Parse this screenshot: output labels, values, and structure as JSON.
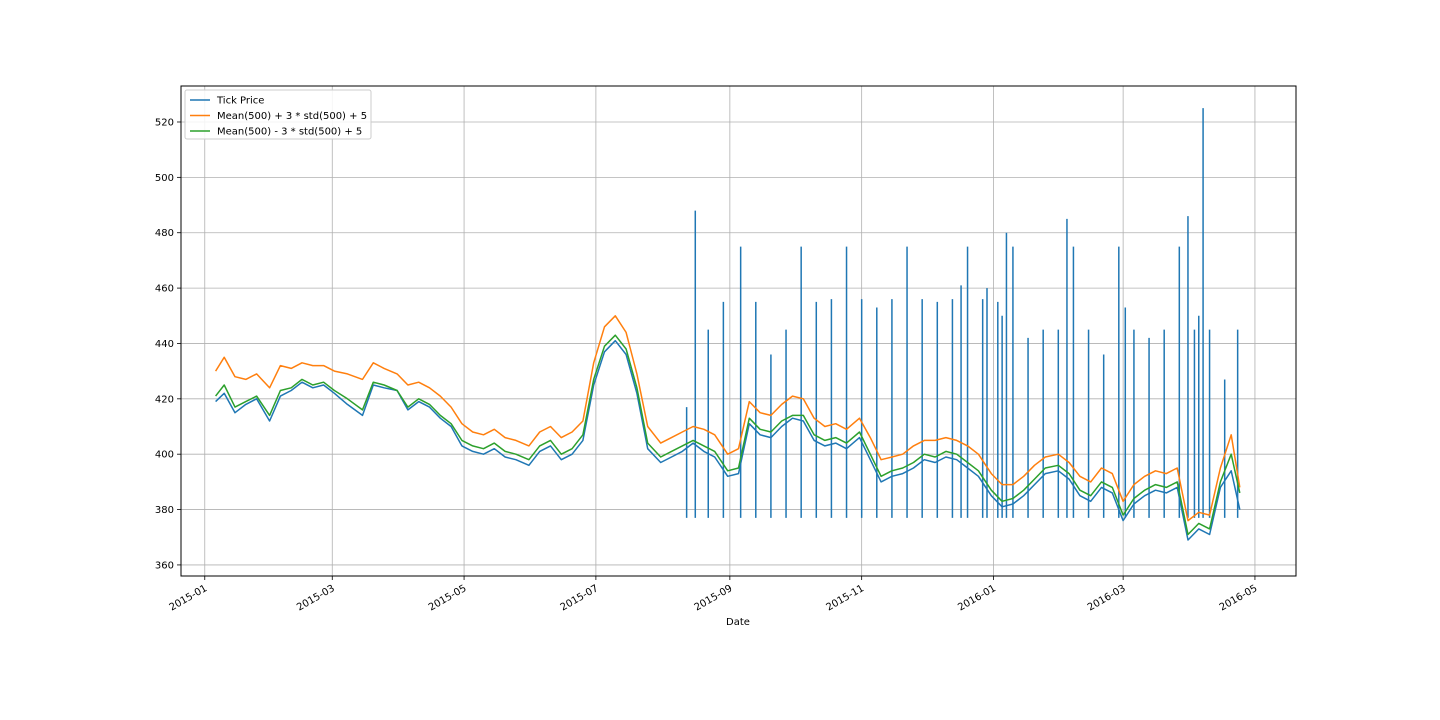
{
  "chart_data": {
    "type": "line",
    "title": "",
    "xlabel": "Date",
    "ylabel": "",
    "xlim": [
      "2014-12-21",
      "2016-05-20"
    ],
    "ylim": [
      356,
      533
    ],
    "grid": true,
    "legend_position": "top-left",
    "x_ticks": [
      "2015-01",
      "2015-03",
      "2015-05",
      "2015-07",
      "2015-09",
      "2015-11",
      "2016-01",
      "2016-03",
      "2016-05"
    ],
    "y_ticks": [
      360,
      380,
      400,
      420,
      440,
      460,
      480,
      500,
      520
    ],
    "series": [
      {
        "name": "Tick Price",
        "color": "#1f77b4",
        "x": [
          "2015-01-06",
          "2015-01-10",
          "2015-01-15",
          "2015-01-20",
          "2015-01-25",
          "2015-01-31",
          "2015-02-05",
          "2015-02-10",
          "2015-02-15",
          "2015-02-20",
          "2015-02-25",
          "2015-03-02",
          "2015-03-08",
          "2015-03-15",
          "2015-03-20",
          "2015-03-25",
          "2015-03-31",
          "2015-04-05",
          "2015-04-10",
          "2015-04-15",
          "2015-04-20",
          "2015-04-25",
          "2015-04-30",
          "2015-05-05",
          "2015-05-10",
          "2015-05-15",
          "2015-05-20",
          "2015-05-25",
          "2015-05-31",
          "2015-06-05",
          "2015-06-10",
          "2015-06-15",
          "2015-06-20",
          "2015-06-25",
          "2015-06-30",
          "2015-07-05",
          "2015-07-10",
          "2015-07-15",
          "2015-07-20",
          "2015-07-25",
          "2015-07-31",
          "2015-08-05",
          "2015-08-10",
          "2015-08-15",
          "2015-08-20",
          "2015-08-25",
          "2015-08-31",
          "2015-09-05",
          "2015-09-10",
          "2015-09-15",
          "2015-09-20",
          "2015-09-25",
          "2015-09-30",
          "2015-10-05",
          "2015-10-10",
          "2015-10-15",
          "2015-10-20",
          "2015-10-25",
          "2015-10-31",
          "2015-11-05",
          "2015-11-10",
          "2015-11-15",
          "2015-11-20",
          "2015-11-25",
          "2015-11-30",
          "2015-12-05",
          "2015-12-10",
          "2015-12-15",
          "2015-12-20",
          "2015-12-25",
          "2015-12-31",
          "2016-01-05",
          "2016-01-10",
          "2016-01-15",
          "2016-01-20",
          "2016-01-25",
          "2016-01-31",
          "2016-02-05",
          "2016-02-10",
          "2016-02-15",
          "2016-02-20",
          "2016-02-25",
          "2016-03-01",
          "2016-03-06",
          "2016-03-11",
          "2016-03-16",
          "2016-03-21",
          "2016-03-26",
          "2016-03-31",
          "2016-04-05",
          "2016-04-10",
          "2016-04-15",
          "2016-04-20",
          "2016-04-24"
        ],
        "y": [
          419,
          422,
          415,
          418,
          420,
          412,
          421,
          423,
          426,
          424,
          425,
          422,
          418,
          414,
          425,
          424,
          423,
          416,
          419,
          417,
          413,
          410,
          403,
          401,
          400,
          402,
          399,
          398,
          396,
          401,
          403,
          398,
          400,
          405,
          425,
          437,
          441,
          436,
          422,
          402,
          397,
          399,
          401,
          404,
          401,
          399,
          392,
          393,
          411,
          407,
          406,
          410,
          413,
          412,
          405,
          403,
          404,
          402,
          406,
          398,
          390,
          392,
          393,
          395,
          398,
          397,
          399,
          398,
          395,
          392,
          385,
          381,
          382,
          385,
          389,
          393,
          394,
          391,
          385,
          383,
          388,
          386,
          376,
          382,
          385,
          387,
          386,
          388,
          369,
          373,
          371,
          388,
          394,
          380
        ]
      },
      {
        "name": "Mean(500) + 3 * std(500) + 5",
        "color": "#ff7f0e",
        "x": [
          "2015-01-06",
          "2015-01-10",
          "2015-01-15",
          "2015-01-20",
          "2015-01-25",
          "2015-01-31",
          "2015-02-05",
          "2015-02-10",
          "2015-02-15",
          "2015-02-20",
          "2015-02-25",
          "2015-03-02",
          "2015-03-08",
          "2015-03-15",
          "2015-03-20",
          "2015-03-25",
          "2015-03-31",
          "2015-04-05",
          "2015-04-10",
          "2015-04-15",
          "2015-04-20",
          "2015-04-25",
          "2015-04-30",
          "2015-05-05",
          "2015-05-10",
          "2015-05-15",
          "2015-05-20",
          "2015-05-25",
          "2015-05-31",
          "2015-06-05",
          "2015-06-10",
          "2015-06-15",
          "2015-06-20",
          "2015-06-25",
          "2015-06-30",
          "2015-07-05",
          "2015-07-10",
          "2015-07-15",
          "2015-07-20",
          "2015-07-25",
          "2015-07-31",
          "2015-08-05",
          "2015-08-10",
          "2015-08-15",
          "2015-08-20",
          "2015-08-25",
          "2015-08-31",
          "2015-09-05",
          "2015-09-10",
          "2015-09-15",
          "2015-09-20",
          "2015-09-25",
          "2015-09-30",
          "2015-10-05",
          "2015-10-10",
          "2015-10-15",
          "2015-10-20",
          "2015-10-25",
          "2015-10-31",
          "2015-11-05",
          "2015-11-10",
          "2015-11-15",
          "2015-11-20",
          "2015-11-25",
          "2015-11-30",
          "2015-12-05",
          "2015-12-10",
          "2015-12-15",
          "2015-12-20",
          "2015-12-25",
          "2015-12-31",
          "2016-01-05",
          "2016-01-10",
          "2016-01-15",
          "2016-01-20",
          "2016-01-25",
          "2016-01-31",
          "2016-02-05",
          "2016-02-10",
          "2016-02-15",
          "2016-02-20",
          "2016-02-25",
          "2016-03-01",
          "2016-03-06",
          "2016-03-11",
          "2016-03-16",
          "2016-03-21",
          "2016-03-26",
          "2016-03-31",
          "2016-04-05",
          "2016-04-10",
          "2016-04-15",
          "2016-04-20",
          "2016-04-24"
        ],
        "y": [
          430,
          435,
          428,
          427,
          429,
          424,
          432,
          431,
          433,
          432,
          432,
          430,
          429,
          427,
          433,
          431,
          429,
          425,
          426,
          424,
          421,
          417,
          411,
          408,
          407,
          409,
          406,
          405,
          403,
          408,
          410,
          406,
          408,
          412,
          433,
          446,
          450,
          444,
          429,
          410,
          404,
          406,
          408,
          410,
          409,
          407,
          400,
          402,
          419,
          415,
          414,
          418,
          421,
          420,
          413,
          410,
          411,
          409,
          413,
          406,
          398,
          399,
          400,
          403,
          405,
          405,
          406,
          405,
          403,
          400,
          393,
          389,
          389,
          392,
          396,
          399,
          400,
          397,
          392,
          390,
          395,
          393,
          383,
          389,
          392,
          394,
          393,
          395,
          376,
          379,
          378,
          395,
          407,
          388
        ]
      },
      {
        "name": "Mean(500) - 3 * std(500) + 5",
        "color": "#2ca02c",
        "x": [
          "2015-01-06",
          "2015-01-10",
          "2015-01-15",
          "2015-01-20",
          "2015-01-25",
          "2015-01-31",
          "2015-02-05",
          "2015-02-10",
          "2015-02-15",
          "2015-02-20",
          "2015-02-25",
          "2015-03-02",
          "2015-03-08",
          "2015-03-15",
          "2015-03-20",
          "2015-03-25",
          "2015-03-31",
          "2015-04-05",
          "2015-04-10",
          "2015-04-15",
          "2015-04-20",
          "2015-04-25",
          "2015-04-30",
          "2015-05-05",
          "2015-05-10",
          "2015-05-15",
          "2015-05-20",
          "2015-05-25",
          "2015-05-31",
          "2015-06-05",
          "2015-06-10",
          "2015-06-15",
          "2015-06-20",
          "2015-06-25",
          "2015-06-30",
          "2015-07-05",
          "2015-07-10",
          "2015-07-15",
          "2015-07-20",
          "2015-07-25",
          "2015-07-31",
          "2015-08-05",
          "2015-08-10",
          "2015-08-15",
          "2015-08-20",
          "2015-08-25",
          "2015-08-31",
          "2015-09-05",
          "2015-09-10",
          "2015-09-15",
          "2015-09-20",
          "2015-09-25",
          "2015-09-30",
          "2015-10-05",
          "2015-10-10",
          "2015-10-15",
          "2015-10-20",
          "2015-10-25",
          "2015-10-31",
          "2015-11-05",
          "2015-11-10",
          "2015-11-15",
          "2015-11-20",
          "2015-11-25",
          "2015-11-30",
          "2015-12-05",
          "2015-12-10",
          "2015-12-15",
          "2015-12-20",
          "2015-12-25",
          "2015-12-31",
          "2016-01-05",
          "2016-01-10",
          "2016-01-15",
          "2016-01-20",
          "2016-01-25",
          "2016-01-31",
          "2016-02-05",
          "2016-02-10",
          "2016-02-15",
          "2016-02-20",
          "2016-02-25",
          "2016-03-01",
          "2016-03-06",
          "2016-03-11",
          "2016-03-16",
          "2016-03-21",
          "2016-03-26",
          "2016-03-31",
          "2016-04-05",
          "2016-04-10",
          "2016-04-15",
          "2016-04-20",
          "2016-04-24"
        ],
        "y": [
          421,
          425,
          417,
          419,
          421,
          414,
          423,
          424,
          427,
          425,
          426,
          423,
          420,
          416,
          426,
          425,
          423,
          417,
          420,
          418,
          414,
          411,
          405,
          403,
          402,
          404,
          401,
          400,
          398,
          403,
          405,
          400,
          402,
          407,
          427,
          439,
          443,
          438,
          424,
          404,
          399,
          401,
          403,
          405,
          403,
          401,
          394,
          395,
          413,
          409,
          408,
          412,
          414,
          414,
          407,
          405,
          406,
          404,
          408,
          400,
          392,
          394,
          395,
          397,
          400,
          399,
          401,
          400,
          397,
          394,
          387,
          383,
          384,
          387,
          391,
          395,
          396,
          393,
          387,
          385,
          390,
          388,
          378,
          384,
          387,
          389,
          388,
          390,
          371,
          375,
          373,
          390,
          400,
          386
        ]
      }
    ],
    "spikes": {
      "color": "#1f77b4",
      "base": 377,
      "points": [
        {
          "x": "2015-08-12",
          "y": 417
        },
        {
          "x": "2015-08-16",
          "y": 488
        },
        {
          "x": "2015-08-22",
          "y": 445
        },
        {
          "x": "2015-08-29",
          "y": 455
        },
        {
          "x": "2015-09-06",
          "y": 475
        },
        {
          "x": "2015-09-13",
          "y": 455
        },
        {
          "x": "2015-09-20",
          "y": 436
        },
        {
          "x": "2015-09-27",
          "y": 445
        },
        {
          "x": "2015-10-04",
          "y": 475
        },
        {
          "x": "2015-10-11",
          "y": 455
        },
        {
          "x": "2015-10-18",
          "y": 456
        },
        {
          "x": "2015-10-25",
          "y": 475
        },
        {
          "x": "2015-11-01",
          "y": 456
        },
        {
          "x": "2015-11-08",
          "y": 453
        },
        {
          "x": "2015-11-15",
          "y": 456
        },
        {
          "x": "2015-11-22",
          "y": 475
        },
        {
          "x": "2015-11-29",
          "y": 456
        },
        {
          "x": "2015-12-06",
          "y": 455
        },
        {
          "x": "2015-12-13",
          "y": 456
        },
        {
          "x": "2015-12-17",
          "y": 461
        },
        {
          "x": "2015-12-20",
          "y": 475
        },
        {
          "x": "2015-12-27",
          "y": 456
        },
        {
          "x": "2015-12-29",
          "y": 460
        },
        {
          "x": "2016-01-03",
          "y": 455
        },
        {
          "x": "2016-01-05",
          "y": 450
        },
        {
          "x": "2016-01-07",
          "y": 480
        },
        {
          "x": "2016-01-10",
          "y": 475
        },
        {
          "x": "2016-01-17",
          "y": 442
        },
        {
          "x": "2016-01-24",
          "y": 445
        },
        {
          "x": "2016-01-31",
          "y": 445
        },
        {
          "x": "2016-02-04",
          "y": 485
        },
        {
          "x": "2016-02-07",
          "y": 475
        },
        {
          "x": "2016-02-14",
          "y": 445
        },
        {
          "x": "2016-02-21",
          "y": 436
        },
        {
          "x": "2016-02-28",
          "y": 475
        },
        {
          "x": "2016-03-02",
          "y": 453
        },
        {
          "x": "2016-03-06",
          "y": 445
        },
        {
          "x": "2016-03-13",
          "y": 442
        },
        {
          "x": "2016-03-20",
          "y": 445
        },
        {
          "x": "2016-03-27",
          "y": 475
        },
        {
          "x": "2016-03-31",
          "y": 486
        },
        {
          "x": "2016-04-03",
          "y": 445
        },
        {
          "x": "2016-04-05",
          "y": 450
        },
        {
          "x": "2016-04-07",
          "y": 525
        },
        {
          "x": "2016-04-10",
          "y": 445
        },
        {
          "x": "2016-04-17",
          "y": 427
        },
        {
          "x": "2016-04-23",
          "y": 445
        }
      ]
    }
  }
}
